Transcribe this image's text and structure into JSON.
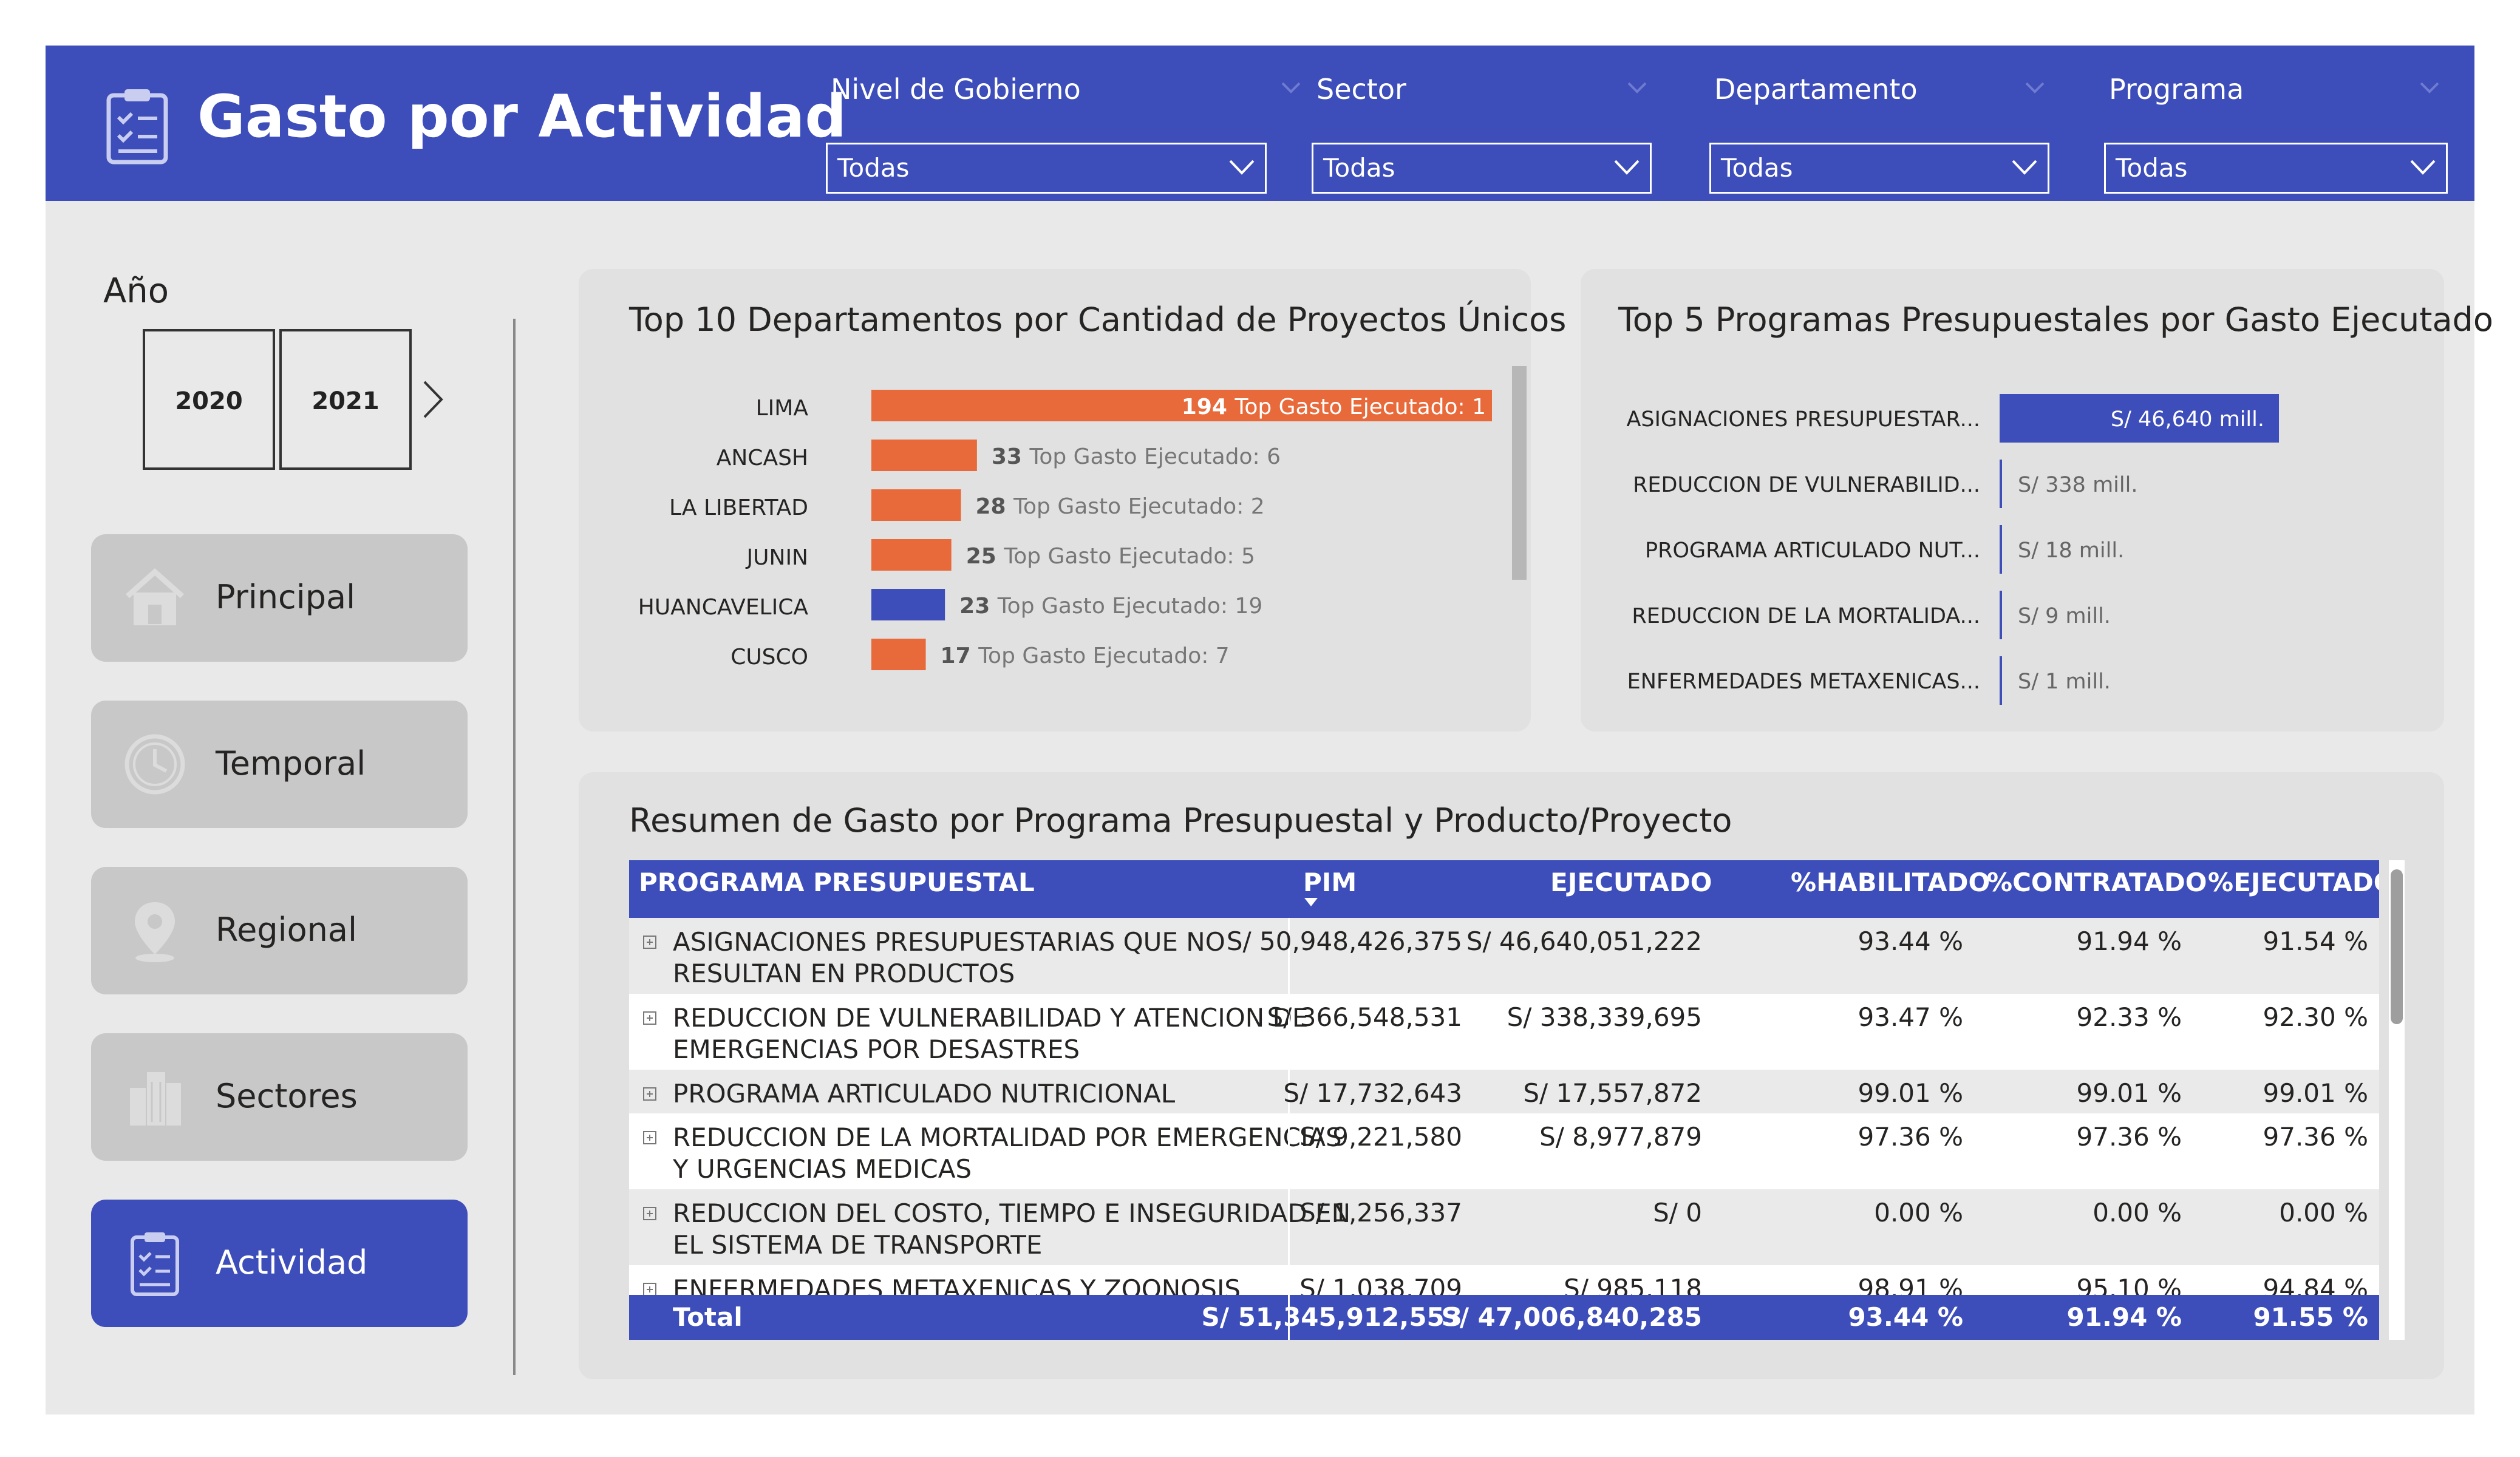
{
  "header": {
    "title": "Gasto por Actividad",
    "filters": [
      {
        "label": "Nivel de Gobierno",
        "value": "Todas"
      },
      {
        "label": "Sector",
        "value": "Todas"
      },
      {
        "label": "Departamento",
        "value": "Todas"
      },
      {
        "label": "Programa",
        "value": "Todas"
      }
    ]
  },
  "year_slicer": {
    "label": "Año",
    "years": [
      "2020",
      "2021"
    ]
  },
  "nav": [
    {
      "label": "Principal",
      "icon": "home-icon",
      "active": false
    },
    {
      "label": "Temporal",
      "icon": "clock-icon",
      "active": false
    },
    {
      "label": "Regional",
      "icon": "location-pin-icon",
      "active": false
    },
    {
      "label": "Sectores",
      "icon": "buildings-icon",
      "active": false
    },
    {
      "label": "Actividad",
      "icon": "clipboard-icon",
      "active": true
    }
  ],
  "colors": {
    "accent": "#3d4db9",
    "orange": "#e8693a",
    "card": "#e1e1e1"
  },
  "chart_data": [
    {
      "type": "bar",
      "orientation": "horizontal",
      "title": "Top 10 Departamentos por Cantidad de Proyectos Únicos",
      "categories": [
        "LIMA",
        "ANCASH",
        "LA LIBERTAD",
        "JUNIN",
        "HUANCAVELICA",
        "CUSCO"
      ],
      "values": [
        194,
        33,
        28,
        25,
        23,
        17
      ],
      "annotations": [
        "Top Gasto Ejecutado: 1",
        "Top Gasto Ejecutado: 6",
        "Top Gasto Ejecutado: 2",
        "Top Gasto Ejecutado: 5",
        "Top Gasto Ejecutado: 19",
        "Top Gasto Ejecutado: 7"
      ],
      "bar_colors": [
        "#e8693a",
        "#e8693a",
        "#e8693a",
        "#e8693a",
        "#3d4db9",
        "#e8693a"
      ],
      "xlim": [
        0,
        194
      ]
    },
    {
      "type": "bar",
      "orientation": "horizontal",
      "title": "Top 5 Programas Presupuestales por Gasto Ejecutado",
      "categories": [
        "ASIGNACIONES PRESUPUESTAR...",
        "REDUCCION DE VULNERABILID...",
        "PROGRAMA ARTICULADO NUT...",
        "REDUCCION DE LA MORTALIDA...",
        "ENFERMEDADES METAXENICAS..."
      ],
      "values": [
        46640,
        338,
        18,
        9,
        1
      ],
      "value_labels": [
        "S/ 46,640 mill.",
        "S/ 338 mill.",
        "S/ 18 mill.",
        "S/ 9 mill.",
        "S/ 1 mill."
      ],
      "bar_color": "#3d4db9",
      "xlim": [
        0,
        46640
      ]
    },
    {
      "type": "table",
      "title": "Resumen de Gasto por Programa Presupuestal y Producto/Proyecto",
      "columns": [
        "PROGRAMA PRESUPUESTAL",
        "PIM",
        "EJECUTADO",
        "%HABILITADO",
        "%CONTRATADO",
        "%EJECUTADO"
      ],
      "rows": [
        {
          "line1": "ASIGNACIONES PRESUPUESTARIAS QUE NO",
          "line2": "RESULTAN EN PRODUCTOS",
          "pim": "S/ 50,948,426,375",
          "ejecutado": "S/ 46,640,051,222",
          "habilitado": "93.44 %",
          "contratado": "91.94 %",
          "pct_ejecutado": "91.54 %"
        },
        {
          "line1": "REDUCCION DE VULNERABILIDAD Y ATENCION DE",
          "line2": "EMERGENCIAS POR DESASTRES",
          "pim": "S/ 366,548,531",
          "ejecutado": "S/ 338,339,695",
          "habilitado": "93.47 %",
          "contratado": "92.33 %",
          "pct_ejecutado": "92.30 %"
        },
        {
          "line1": "PROGRAMA ARTICULADO NUTRICIONAL",
          "line2": "",
          "pim": "S/ 17,732,643",
          "ejecutado": "S/ 17,557,872",
          "habilitado": "99.01 %",
          "contratado": "99.01 %",
          "pct_ejecutado": "99.01 %"
        },
        {
          "line1": "REDUCCION DE LA MORTALIDAD POR EMERGENCIAS",
          "line2": "Y URGENCIAS MEDICAS",
          "pim": "S/ 9,221,580",
          "ejecutado": "S/ 8,977,879",
          "habilitado": "97.36 %",
          "contratado": "97.36 %",
          "pct_ejecutado": "97.36 %"
        },
        {
          "line1": "REDUCCION DEL COSTO, TIEMPO E INSEGURIDAD EN",
          "line2": "EL SISTEMA DE TRANSPORTE",
          "pim": "S/ 1,256,337",
          "ejecutado": "S/ 0",
          "habilitado": "0.00 %",
          "contratado": "0.00 %",
          "pct_ejecutado": "0.00 %"
        },
        {
          "line1": "ENFERMEDADES METAXENICAS Y ZOONOSIS",
          "line2": "",
          "pim": "S/ 1,038,709",
          "ejecutado": "S/ 985,118",
          "habilitado": "98.91 %",
          "contratado": "95.10 %",
          "pct_ejecutado": "94.84 %"
        }
      ],
      "total": {
        "label": "Total",
        "pim": "S/ 51,345,912,553",
        "ejecutado": "S/ 47,006,840,285",
        "habilitado": "93.44 %",
        "contratado": "91.94 %",
        "pct_ejecutado": "91.55 %"
      }
    }
  ]
}
